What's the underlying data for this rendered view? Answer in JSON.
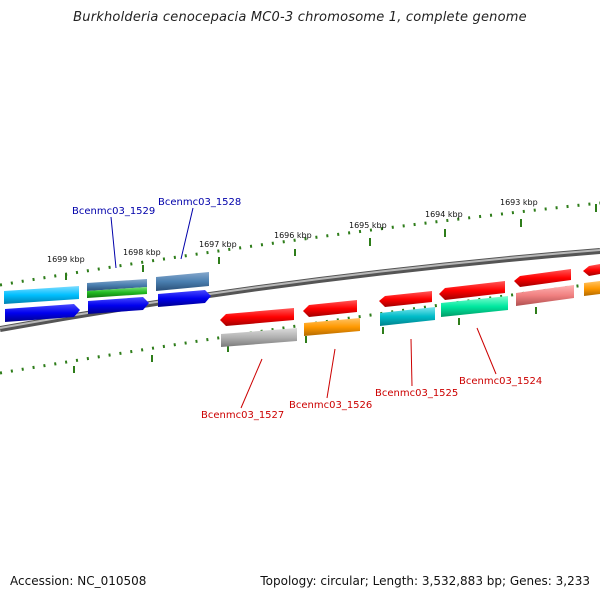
{
  "title": "Burkholderia cenocepacia MC0-3 chromosome 1, complete genome",
  "footer": {
    "accession": "Accession: NC_010508",
    "summary": "Topology: circular; Length: 3,532,883 bp; Genes: 3,233"
  },
  "ruler": {
    "labels": [
      "1699 kbp",
      "1698 kbp",
      "1697 kbp",
      "1696 kbp",
      "1695 kbp",
      "1694 kbp",
      "1693 kbp"
    ],
    "tick_color": "#2e7d1a"
  },
  "gene_labels": [
    {
      "text": "Bcenmc03_1529",
      "color": "#0000aa"
    },
    {
      "text": "Bcenmc03_1528",
      "color": "#0000aa"
    },
    {
      "text": "Bcenmc03_1527",
      "color": "#cc0000"
    },
    {
      "text": "Bcenmc03_1526",
      "color": "#cc0000"
    },
    {
      "text": "Bcenmc03_1525",
      "color": "#cc0000"
    },
    {
      "text": "Bcenmc03_1524",
      "color": "#cc0000"
    }
  ],
  "colors": {
    "backbone": "#888888",
    "red": "#ff0000",
    "blue": "#0000ee",
    "cyan": "#00bfff",
    "steel": "#4a7fb0",
    "green": "#22bb22",
    "teal": "#00bcc8",
    "mint": "#00e8a0",
    "orange": "#ff9900",
    "pink": "#f08080",
    "gray": "#b0b0b0"
  }
}
